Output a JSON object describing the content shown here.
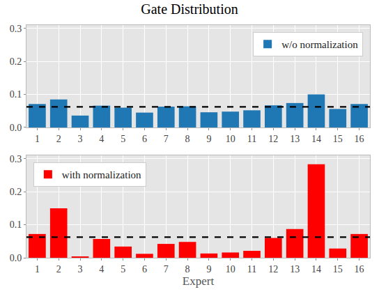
{
  "chart_data": [
    {
      "type": "bar",
      "title": "Gate Distribution",
      "categories": [
        "1",
        "2",
        "3",
        "4",
        "5",
        "6",
        "7",
        "8",
        "9",
        "10",
        "11",
        "12",
        "13",
        "14",
        "15",
        "16"
      ],
      "series": [
        {
          "name": "w/o normalization",
          "color": "#1f77b4",
          "values": [
            0.071,
            0.085,
            0.036,
            0.066,
            0.06,
            0.045,
            0.063,
            0.064,
            0.046,
            0.048,
            0.052,
            0.067,
            0.074,
            0.1,
            0.056,
            0.071
          ]
        }
      ],
      "ylim": [
        0,
        0.31
      ],
      "yticks": [
        {
          "value": 0,
          "label": "0.0"
        },
        0.1,
        0.2,
        0.3
      ],
      "reference_line": 0.0625,
      "grid": true,
      "legend": "upper right"
    },
    {
      "type": "bar",
      "x_label": "Expert",
      "categories": [
        "1",
        "2",
        "3",
        "4",
        "5",
        "6",
        "7",
        "8",
        "9",
        "10",
        "11",
        "12",
        "13",
        "14",
        "15",
        "16"
      ],
      "series": [
        {
          "name": "with normalization",
          "color": "#ff0000",
          "values": [
            0.072,
            0.15,
            0.004,
            0.057,
            0.034,
            0.012,
            0.042,
            0.048,
            0.013,
            0.016,
            0.021,
            0.06,
            0.087,
            0.283,
            0.028,
            0.072
          ]
        }
      ],
      "ylim": [
        0,
        0.31
      ],
      "yticks": [
        {
          "value": 0,
          "label": "0.0"
        },
        0.1,
        0.2,
        0.3
      ],
      "reference_line": 0.0625,
      "grid": true,
      "legend": "upper left"
    }
  ]
}
